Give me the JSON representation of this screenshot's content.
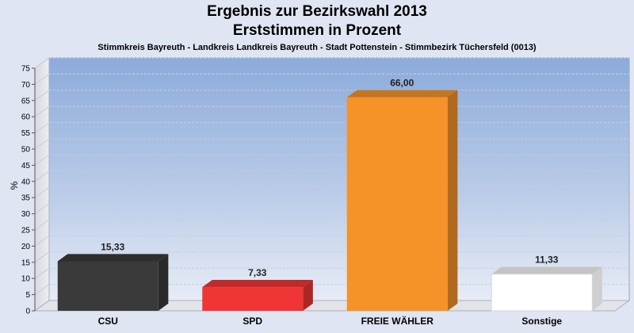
{
  "chart_data": {
    "type": "bar",
    "title": "Ergebnis zur Bezirkswahl 2013",
    "subtitle": "Erststimmen in Prozent",
    "subtitle2": "Stimmkreis Bayreuth - Landkreis Landkreis Bayreuth - Stadt Pottenstein - Stimmbezirk Tüchersfeld (0013)",
    "ylabel": "%",
    "xlabel": "",
    "ylim": [
      0,
      75
    ],
    "yticks": [
      0,
      5,
      10,
      15,
      20,
      25,
      30,
      35,
      40,
      45,
      50,
      55,
      60,
      65,
      70,
      75
    ],
    "grid": true,
    "categories": [
      "CSU",
      "SPD",
      "FREIE WÄHLER",
      "Sonstige"
    ],
    "values": [
      15.33,
      7.33,
      66.0,
      11.33
    ],
    "value_labels": [
      "15,33",
      "7,33",
      "66,00",
      "11,33"
    ],
    "colors": [
      "#3a3a3a",
      "#f03535",
      "#f59228",
      "#ffffff"
    ]
  }
}
